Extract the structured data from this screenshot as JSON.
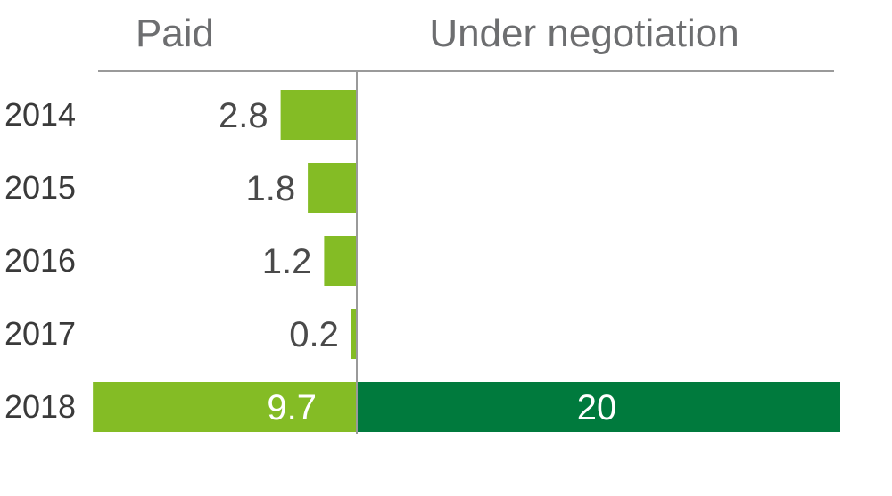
{
  "chart_data": {
    "type": "bar",
    "orientation": "horizontal",
    "categories": [
      "2014",
      "2015",
      "2016",
      "2017",
      "2018"
    ],
    "series": [
      {
        "name": "Paid",
        "values": [
          2.8,
          1.8,
          1.2,
          0.2,
          9.7
        ],
        "color": "#84bc25",
        "direction": "left"
      },
      {
        "name": "Under negotiation",
        "values": [
          null,
          null,
          null,
          null,
          20
        ],
        "color": "#007a3d",
        "direction": "right"
      }
    ],
    "value_labels": {
      "paid": [
        "2.8",
        "1.8",
        "1.2",
        "0.2",
        "9.7"
      ],
      "under_negotiation": [
        "",
        "",
        "",
        "",
        "20"
      ]
    },
    "title": "",
    "xlabel": "",
    "ylabel": "",
    "legend": "top",
    "grid": false
  }
}
